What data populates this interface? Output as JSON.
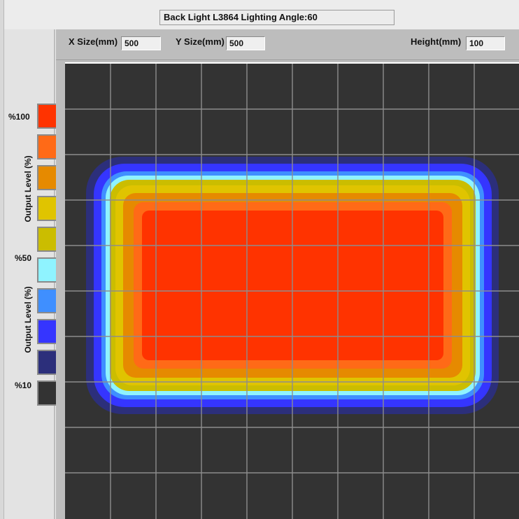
{
  "window": {
    "title": "Back Light L3864 Lighting Angle:60"
  },
  "parameters": {
    "x_size_label": "X Size(mm)",
    "x_size_value": "500",
    "y_size_label": "Y Size(mm)",
    "y_size_value": "500",
    "height_label": "Height(mm)",
    "height_value": "100"
  },
  "legend": {
    "label_100": "%100",
    "label_50": "%50",
    "label_10": "%10",
    "axis_label_upper": "Output Level (%)",
    "axis_label_lower": "Output Level (%)",
    "colors": [
      "#ff3300",
      "#ff6a17",
      "#e68a00",
      "#e0c400",
      "#cbbd00",
      "#8ff3ff",
      "#3f8fff",
      "#3535ff",
      "#2c2f7b",
      "#333333"
    ]
  },
  "plot": {
    "background_color": "#333333",
    "grid_color": "#8d8d8d",
    "contour_colors": [
      "#2c2f7b",
      "#3535ff",
      "#3f8fff",
      "#8ff3ff",
      "#cbbd00",
      "#e0c400",
      "#e68a00",
      "#ff6a17",
      "#ff3300"
    ]
  }
}
